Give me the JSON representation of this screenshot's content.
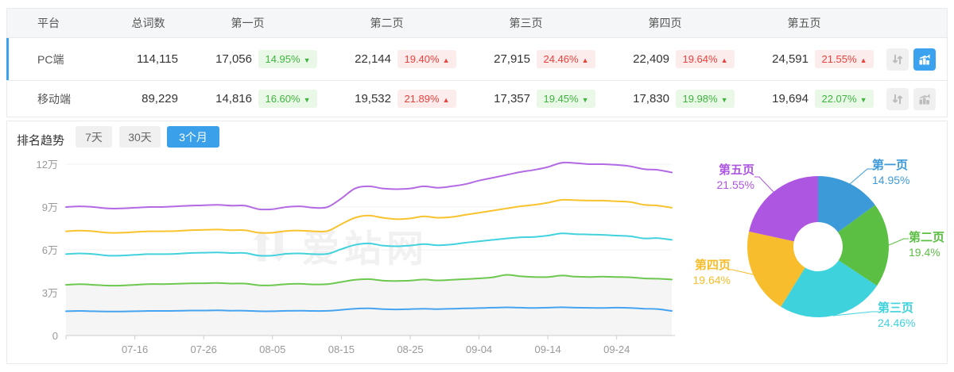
{
  "table": {
    "headers": {
      "platform": "平台",
      "total": "总词数",
      "pages": [
        "第一页",
        "第二页",
        "第三页",
        "第四页",
        "第五页"
      ]
    },
    "rows": [
      {
        "platform": "PC端",
        "total": "114,115",
        "active": true,
        "pages": [
          {
            "count": "17,056",
            "pct": "14.95%",
            "dir": "down"
          },
          {
            "count": "22,144",
            "pct": "19.40%",
            "dir": "up"
          },
          {
            "count": "27,915",
            "pct": "24.46%",
            "dir": "up"
          },
          {
            "count": "22,409",
            "pct": "19.64%",
            "dir": "up"
          },
          {
            "count": "24,591",
            "pct": "21.55%",
            "dir": "up"
          }
        ]
      },
      {
        "platform": "移动端",
        "total": "89,229",
        "active": false,
        "pages": [
          {
            "count": "14,816",
            "pct": "16.60%",
            "dir": "down"
          },
          {
            "count": "19,532",
            "pct": "21.89%",
            "dir": "up"
          },
          {
            "count": "17,357",
            "pct": "19.45%",
            "dir": "down"
          },
          {
            "count": "17,830",
            "pct": "19.98%",
            "dir": "down"
          },
          {
            "count": "19,694",
            "pct": "22.07%",
            "dir": "down"
          }
        ]
      }
    ],
    "icons": {
      "sort": "sort-arrows-icon",
      "chart": "trend-chart-icon"
    }
  },
  "trend": {
    "title": "排名趋势",
    "ranges": [
      "7天",
      "30天",
      "3个月"
    ],
    "active_range": "3个月",
    "watermark": "爱站网"
  },
  "chart_data": [
    {
      "type": "line",
      "title": "排名趋势(3个月)",
      "unit": "万",
      "ylim": [
        0,
        12
      ],
      "y_ticks": [
        "0",
        "3万",
        "6万",
        "9万",
        "12万"
      ],
      "x_ticks": [
        "07-16",
        "07-26",
        "08-05",
        "08-15",
        "08-25",
        "09-04",
        "09-14",
        "09-24"
      ],
      "x_tick_idx": [
        5,
        10,
        15,
        20,
        25,
        30,
        35,
        40
      ],
      "grid": true,
      "series": [
        {
          "name": "line-purple-top",
          "color": "#b36ae2",
          "area": false,
          "values": [
            9.0,
            9.05,
            9.0,
            8.9,
            8.9,
            8.95,
            9.0,
            9.0,
            9.05,
            9.1,
            9.12,
            9.15,
            9.1,
            9.1,
            8.85,
            8.85,
            9.0,
            9.05,
            8.95,
            9.0,
            9.6,
            10.3,
            10.45,
            10.3,
            10.25,
            10.3,
            10.45,
            10.35,
            10.45,
            10.6,
            10.85,
            11.05,
            11.25,
            11.45,
            11.6,
            11.8,
            12.1,
            12.08,
            12.0,
            12.0,
            11.95,
            11.85,
            11.65,
            11.6,
            11.42
          ]
        },
        {
          "name": "line-yellow",
          "color": "#f8c32e",
          "area": false,
          "values": [
            7.3,
            7.35,
            7.3,
            7.2,
            7.2,
            7.25,
            7.3,
            7.3,
            7.32,
            7.38,
            7.4,
            7.42,
            7.38,
            7.38,
            7.2,
            7.2,
            7.32,
            7.35,
            7.3,
            7.32,
            7.8,
            8.25,
            8.4,
            8.25,
            8.15,
            8.2,
            8.35,
            8.25,
            8.3,
            8.45,
            8.6,
            8.75,
            8.9,
            9.05,
            9.15,
            9.3,
            9.5,
            9.48,
            9.45,
            9.45,
            9.4,
            9.35,
            9.15,
            9.1,
            8.95
          ]
        },
        {
          "name": "line-cyan",
          "color": "#41d2dd",
          "area": false,
          "values": [
            5.7,
            5.75,
            5.7,
            5.6,
            5.6,
            5.65,
            5.7,
            5.7,
            5.72,
            5.78,
            5.8,
            5.82,
            5.78,
            5.78,
            5.6,
            5.6,
            5.72,
            5.75,
            5.7,
            5.72,
            6.05,
            6.35,
            6.45,
            6.3,
            6.25,
            6.3,
            6.4,
            6.32,
            6.38,
            6.5,
            6.6,
            6.7,
            6.8,
            6.88,
            6.9,
            7.0,
            7.15,
            7.1,
            7.08,
            7.05,
            7.0,
            6.95,
            6.8,
            6.82,
            6.7
          ]
        },
        {
          "name": "line-green",
          "color": "#6dc84f",
          "area": true,
          "values": [
            3.55,
            3.6,
            3.55,
            3.5,
            3.5,
            3.55,
            3.6,
            3.6,
            3.62,
            3.65,
            3.66,
            3.68,
            3.64,
            3.64,
            3.52,
            3.52,
            3.6,
            3.62,
            3.58,
            3.6,
            3.75,
            3.9,
            3.95,
            3.85,
            3.82,
            3.85,
            3.92,
            3.86,
            3.9,
            3.95,
            4.0,
            4.08,
            4.25,
            4.15,
            4.1,
            4.1,
            4.2,
            4.12,
            4.1,
            4.12,
            4.1,
            4.08,
            4.0,
            3.98,
            3.92
          ]
        },
        {
          "name": "line-blue-bottom",
          "color": "#46a3f0",
          "area": false,
          "values": [
            1.7,
            1.72,
            1.7,
            1.68,
            1.68,
            1.7,
            1.72,
            1.72,
            1.73,
            1.75,
            1.75,
            1.76,
            1.74,
            1.74,
            1.7,
            1.7,
            1.73,
            1.74,
            1.72,
            1.73,
            1.8,
            1.88,
            1.9,
            1.85,
            1.83,
            1.85,
            1.88,
            1.85,
            1.87,
            1.9,
            1.92,
            1.95,
            1.97,
            1.95,
            1.93,
            1.95,
            1.98,
            1.95,
            1.94,
            1.93,
            1.95,
            1.93,
            1.88,
            1.85,
            1.72
          ]
        }
      ]
    },
    {
      "type": "pie",
      "labels": [
        "第一页",
        "第二页",
        "第三页",
        "第四页",
        "第五页"
      ],
      "values": [
        14.95,
        19.4,
        24.46,
        19.64,
        21.55
      ],
      "display": [
        "14.95%",
        "19.4%",
        "24.46%",
        "19.64%",
        "21.55%"
      ],
      "colors": [
        "#3d9ad9",
        "#5abf43",
        "#3ed2dd",
        "#f7bd2c",
        "#ad56e2"
      ],
      "legend_position": "around-labels-with-leader-lines"
    }
  ]
}
